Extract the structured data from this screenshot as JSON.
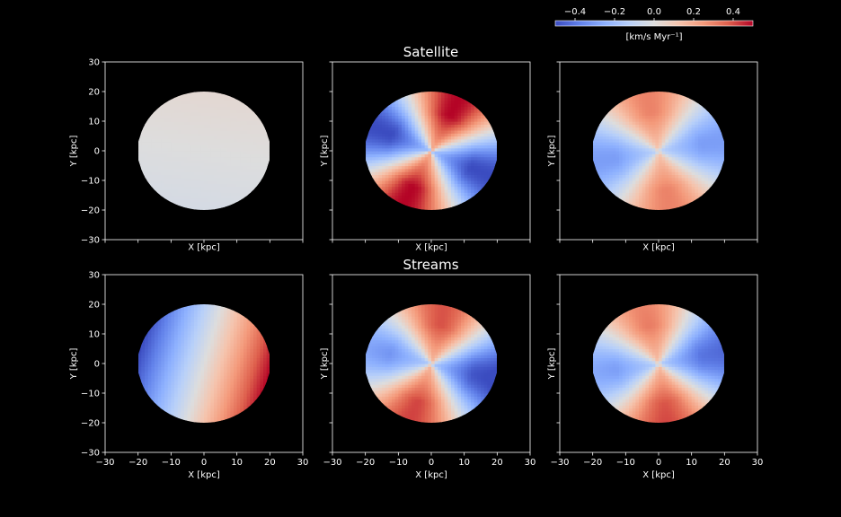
{
  "colorbar": {
    "ticks": [
      -0.4,
      -0.2,
      0.0,
      0.2,
      0.4
    ],
    "tick_labels": [
      "−0.4",
      "−0.2",
      "0.0",
      "0.2",
      "0.4"
    ],
    "vmin": -0.5,
    "vmax": 0.5,
    "label": "[km/s  Myr⁻¹]",
    "colormap": "coolwarm",
    "colors": {
      "low": "#3b4cc0",
      "mid": "#dddddd",
      "high": "#b40426"
    }
  },
  "rows": [
    {
      "title": "Satellite"
    },
    {
      "title": "Streams"
    }
  ],
  "axes": {
    "xlabel": "X [kpc]",
    "ylabel": "Y [kpc]",
    "xlim": [
      -30,
      30
    ],
    "ylim": [
      -30,
      30
    ],
    "ticks": [
      -30,
      -20,
      -10,
      0,
      10,
      20,
      30
    ],
    "tick_labels": [
      "−30",
      "−20",
      "−10",
      "0",
      "10",
      "20",
      "30"
    ]
  },
  "chart_data": [
    {
      "type": "heatmap",
      "row": 0,
      "col": 0,
      "x_range": [
        -20,
        20
      ],
      "y_range": [
        -20,
        20
      ],
      "disk_radius_kpc": 20,
      "harmonic_m": 1,
      "amplitude": 0.03,
      "peak_angle_deg": 80,
      "offset": 0.0
    },
    {
      "type": "heatmap",
      "row": 0,
      "col": 1,
      "x_range": [
        -20,
        20
      ],
      "y_range": [
        -20,
        20
      ],
      "disk_radius_kpc": 20,
      "harmonic_m": 2,
      "amplitude": 0.5,
      "peak_angle_deg": 65,
      "offset": 0.0
    },
    {
      "type": "heatmap",
      "row": 0,
      "col": 2,
      "x_range": [
        -20,
        20
      ],
      "y_range": [
        -20,
        20
      ],
      "disk_radius_kpc": 20,
      "harmonic_m": 2,
      "amplitude": 0.3,
      "peak_angle_deg": 100,
      "offset": 0.0
    },
    {
      "type": "heatmap",
      "row": 1,
      "col": 0,
      "x_range": [
        -20,
        20
      ],
      "y_range": [
        -20,
        20
      ],
      "disk_radius_kpc": 20,
      "harmonic_m": 1,
      "amplitude": 0.5,
      "peak_angle_deg": -15,
      "offset": 0.0
    },
    {
      "type": "heatmap",
      "row": 1,
      "col": 1,
      "x_range": [
        -20,
        20
      ],
      "y_range": [
        -20,
        20
      ],
      "disk_radius_kpc": 20,
      "harmonic_m": 2,
      "amplitude": 0.4,
      "peak_angle_deg": 75,
      "offset": 0.0
    },
    {
      "type": "heatmap",
      "row": 1,
      "col": 2,
      "x_range": [
        -20,
        20
      ],
      "y_range": [
        -20,
        20
      ],
      "disk_radius_kpc": 20,
      "harmonic_m": 2,
      "amplitude": 0.35,
      "peak_angle_deg": 100,
      "offset": 0.0
    }
  ]
}
